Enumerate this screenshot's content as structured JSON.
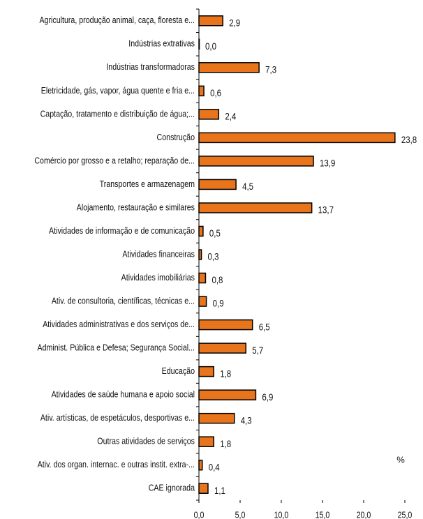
{
  "chart_data": {
    "type": "barh",
    "categories": [
      "Agricultura, produção animal, caça, floresta e...",
      "Indústrias extrativas",
      "Indústrias transformadoras",
      "Eletricidade, gás, vapor, água quente e fria e...",
      "Captação, tratamento e distribuição de água;...",
      "Construção",
      "Comércio por grosso e a retalho; reparação de...",
      "Transportes e armazenagem",
      "Alojamento, restauração e similares",
      "Atividades de informação e de comunicação",
      "Atividades financeiras",
      "Atividades imobiliárias",
      "Ativ. de consultoria, científicas, técnicas e...",
      "Atividades administrativas e dos serviços de...",
      "Administ. Pública e Defesa; Segurança Social...",
      "Educação",
      "Atividades de saúde humana e apoio social",
      "Ativ. artísticas, de espetáculos, desportivas e...",
      "Outras atividades de serviços",
      "Ativ. dos organ. internac. e outras instit. extra-...",
      "CAE ignorada"
    ],
    "values": [
      2.9,
      0.0,
      7.3,
      0.6,
      2.4,
      23.8,
      13.9,
      4.5,
      13.7,
      0.5,
      0.3,
      0.8,
      0.9,
      6.5,
      5.7,
      1.8,
      6.9,
      4.3,
      1.8,
      0.4,
      1.1
    ],
    "value_labels": [
      "2,9",
      "0,0",
      "7,3",
      "0,6",
      "2,4",
      "23,8",
      "13,9",
      "4,5",
      "13,7",
      "0,5",
      "0,3",
      "0,8",
      "0,9",
      "6,5",
      "5,7",
      "1,8",
      "6,9",
      "4,3",
      "1,8",
      "0,4",
      "1,1"
    ],
    "color": "#e8741c",
    "xlim": [
      0,
      25
    ],
    "xticks": [
      {
        "value": 0,
        "label": "0,0"
      },
      {
        "value": 5,
        "label": "5,0"
      },
      {
        "value": 10,
        "label": "10,0"
      },
      {
        "value": 15,
        "label": "15,0"
      },
      {
        "value": 20,
        "label": "20,0"
      },
      {
        "value": 25,
        "label": "25,0"
      }
    ],
    "annotation": "%"
  }
}
